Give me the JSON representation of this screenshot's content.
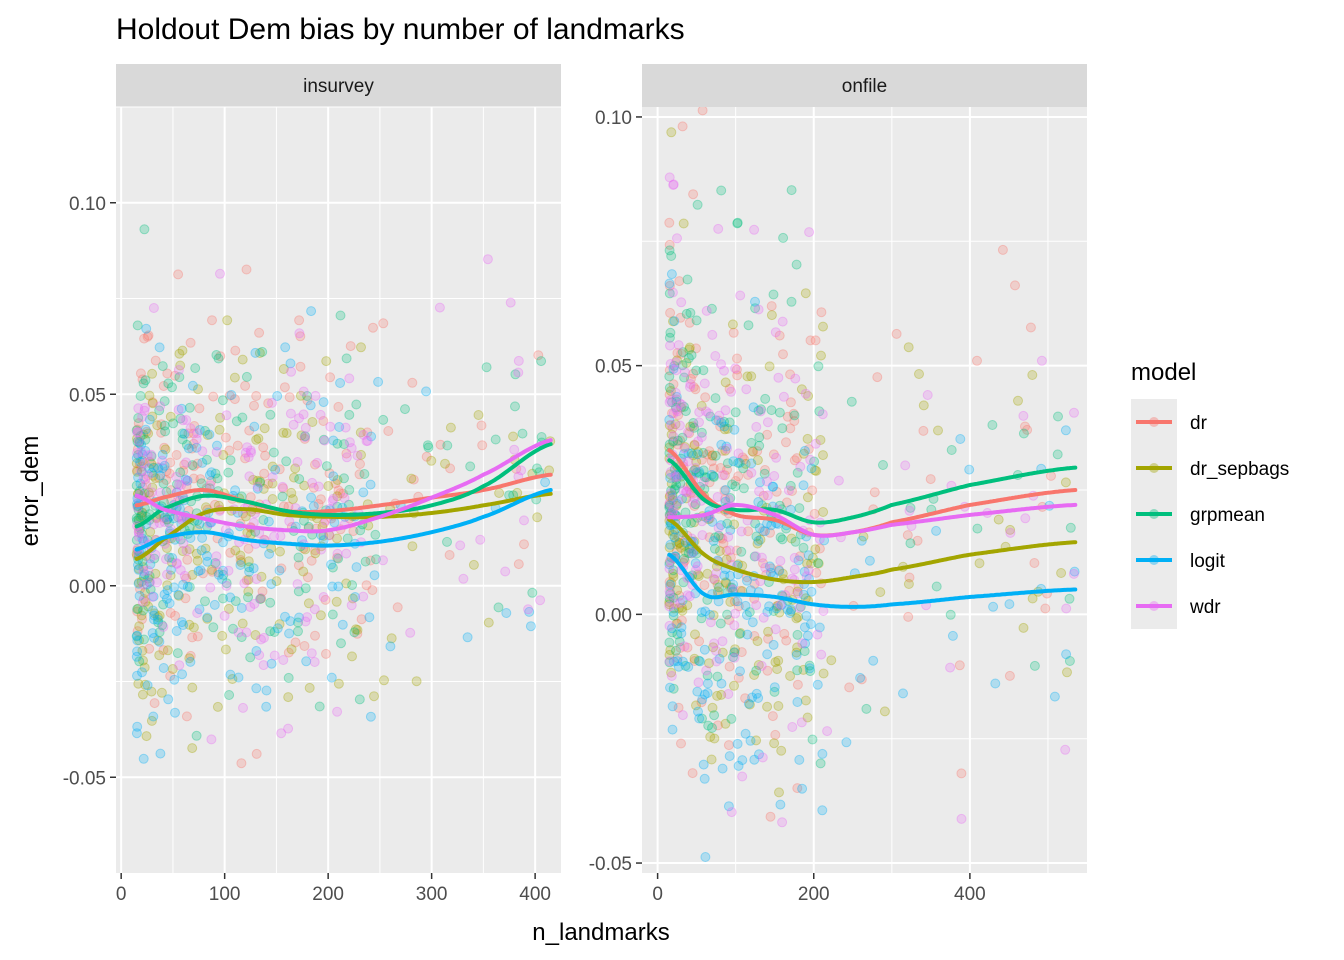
{
  "chart_data": {
    "type": "scatter",
    "title": "Holdout Dem bias by number of landmarks",
    "xlabel": "n_landmarks",
    "ylabel": "error_dem",
    "legend": {
      "title": "model",
      "placement": "right",
      "entries": [
        {
          "name": "dr",
          "color": "#F8766D"
        },
        {
          "name": "dr_sepbags",
          "color": "#A3A500"
        },
        {
          "name": "grpmean",
          "color": "#00BF7D"
        },
        {
          "name": "logit",
          "color": "#00B0F6"
        },
        {
          "name": "wdr",
          "color": "#E76BF3"
        }
      ]
    },
    "grid": true,
    "panels": [
      {
        "strip": "insurvey",
        "xlim": [
          -5,
          425
        ],
        "ylim": [
          -0.075,
          0.125
        ],
        "x_ticks": [
          0,
          100,
          200,
          300,
          400
        ],
        "x_tick_labels": [
          "0",
          "100",
          "200",
          "300",
          "400"
        ],
        "y_ticks": [
          -0.05,
          0.0,
          0.05,
          0.1
        ],
        "y_tick_labels": [
          "-0.05",
          "0.00",
          "0.05",
          "0.10"
        ],
        "smooth": [
          {
            "name": "dr",
            "x": [
              15,
              40,
              80,
              120,
              160,
              200,
              250,
              300,
              350,
              415
            ],
            "y": [
              0.021,
              0.023,
              0.025,
              0.022,
              0.0195,
              0.0195,
              0.021,
              0.023,
              0.025,
              0.029
            ]
          },
          {
            "name": "dr_sepbags",
            "x": [
              15,
              40,
              80,
              120,
              160,
              200,
              250,
              300,
              350,
              415
            ],
            "y": [
              0.007,
              0.012,
              0.019,
              0.02,
              0.0185,
              0.018,
              0.018,
              0.019,
              0.021,
              0.024
            ]
          },
          {
            "name": "grpmean",
            "x": [
              15,
              40,
              80,
              120,
              160,
              200,
              250,
              300,
              350,
              415
            ],
            "y": [
              0.0155,
              0.02,
              0.0235,
              0.022,
              0.0195,
              0.0185,
              0.019,
              0.021,
              0.026,
              0.037
            ]
          },
          {
            "name": "logit",
            "x": [
              15,
              40,
              80,
              120,
              160,
              200,
              250,
              300,
              350,
              415
            ],
            "y": [
              0.0095,
              0.0125,
              0.014,
              0.012,
              0.011,
              0.0105,
              0.0115,
              0.014,
              0.018,
              0.025
            ]
          },
          {
            "name": "wdr",
            "x": [
              15,
              40,
              80,
              120,
              160,
              200,
              250,
              300,
              350,
              415
            ],
            "y": [
              0.0235,
              0.02,
              0.0175,
              0.0155,
              0.0145,
              0.0145,
              0.018,
              0.023,
              0.029,
              0.038
            ]
          }
        ]
      },
      {
        "strip": "onfile",
        "xlim": [
          -20,
          550
        ],
        "ylim": [
          -0.052,
          0.102
        ],
        "x_ticks": [
          0,
          200,
          400
        ],
        "x_tick_labels": [
          "0",
          "200",
          "400"
        ],
        "y_ticks": [
          -0.05,
          0.0,
          0.05,
          0.1
        ],
        "y_tick_labels": [
          "-0.05",
          "0.00",
          "0.05",
          "0.10"
        ],
        "smooth": [
          {
            "name": "dr",
            "x": [
              15,
              60,
              100,
              150,
              200,
              250,
              300,
              400,
              535
            ],
            "y": [
              0.033,
              0.024,
              0.02,
              0.019,
              0.016,
              0.0165,
              0.0185,
              0.022,
              0.025
            ]
          },
          {
            "name": "dr_sepbags",
            "x": [
              15,
              60,
              100,
              150,
              200,
              250,
              300,
              400,
              535
            ],
            "y": [
              0.019,
              0.012,
              0.009,
              0.007,
              0.0065,
              0.0075,
              0.009,
              0.012,
              0.0145
            ]
          },
          {
            "name": "grpmean",
            "x": [
              15,
              60,
              100,
              150,
              200,
              250,
              300,
              400,
              535
            ],
            "y": [
              0.031,
              0.023,
              0.021,
              0.021,
              0.0185,
              0.0195,
              0.022,
              0.026,
              0.0295
            ]
          },
          {
            "name": "logit",
            "x": [
              15,
              60,
              100,
              150,
              200,
              250,
              300,
              400,
              535
            ],
            "y": [
              0.012,
              0.004,
              0.004,
              0.0035,
              0.002,
              0.0015,
              0.002,
              0.0035,
              0.005
            ]
          },
          {
            "name": "wdr",
            "x": [
              15,
              60,
              100,
              150,
              200,
              250,
              300,
              400,
              535
            ],
            "y": [
              0.0195,
              0.02,
              0.022,
              0.02,
              0.016,
              0.0165,
              0.018,
              0.02,
              0.022
            ]
          }
        ]
      }
    ]
  }
}
